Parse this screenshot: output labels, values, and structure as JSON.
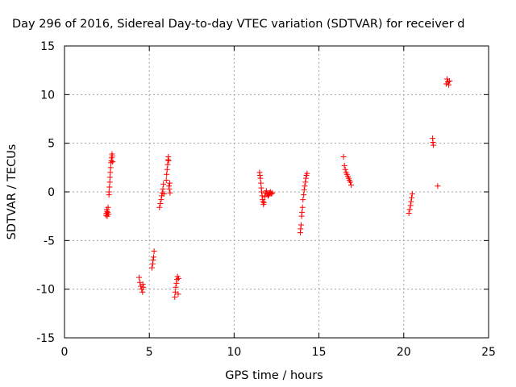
{
  "chart_data": {
    "type": "scatter",
    "title": "Day 296 of 2016, Sidereal Day-to-day VTEC variation (SDTVAR) for receiver d",
    "xlabel": "GPS time / hours",
    "ylabel": "SDTVAR / TECUs",
    "xlim": [
      0,
      25
    ],
    "ylim": [
      -15,
      15
    ],
    "xticks": [
      "0",
      "5",
      "10",
      "15",
      "20",
      "25"
    ],
    "yticks": [
      "-15",
      "-10",
      "-5",
      "0",
      "5",
      "10",
      "15"
    ],
    "grid": true,
    "marker": "plus",
    "color": "#ff0000",
    "points": [
      [
        2.45,
        -2.4
      ],
      [
        2.47,
        -2.2
      ],
      [
        2.5,
        -2.0
      ],
      [
        2.5,
        -1.8
      ],
      [
        2.52,
        -2.5
      ],
      [
        2.55,
        -2.1
      ],
      [
        2.57,
        -1.6
      ],
      [
        2.6,
        -2.3
      ],
      [
        2.62,
        -0.3
      ],
      [
        2.63,
        0.0
      ],
      [
        2.65,
        0.5
      ],
      [
        2.67,
        1.0
      ],
      [
        2.68,
        1.5
      ],
      [
        2.7,
        2.0
      ],
      [
        2.72,
        2.5
      ],
      [
        2.74,
        3.0
      ],
      [
        2.76,
        3.2
      ],
      [
        2.78,
        3.5
      ],
      [
        2.8,
        3.9
      ],
      [
        2.82,
        3.7
      ],
      [
        2.84,
        3.1
      ],
      [
        4.4,
        -8.8
      ],
      [
        4.45,
        -9.3
      ],
      [
        4.5,
        -9.7
      ],
      [
        4.55,
        -10.0
      ],
      [
        4.6,
        -10.3
      ],
      [
        4.62,
        -9.5
      ],
      [
        4.65,
        -9.8
      ],
      [
        5.15,
        -7.8
      ],
      [
        5.2,
        -7.4
      ],
      [
        5.22,
        -7.0
      ],
      [
        5.25,
        -6.7
      ],
      [
        5.28,
        -6.1
      ],
      [
        5.6,
        -1.6
      ],
      [
        5.65,
        -1.2
      ],
      [
        5.7,
        -0.8
      ],
      [
        5.73,
        -0.4
      ],
      [
        5.76,
        -0.1
      ],
      [
        5.8,
        0.3
      ],
      [
        5.83,
        0.8
      ],
      [
        5.86,
        -0.2
      ],
      [
        6.0,
        1.2
      ],
      [
        6.02,
        1.8
      ],
      [
        6.05,
        2.3
      ],
      [
        6.08,
        2.8
      ],
      [
        6.1,
        3.3
      ],
      [
        6.12,
        3.6
      ],
      [
        6.14,
        3.2
      ],
      [
        6.16,
        0.6
      ],
      [
        6.18,
        0.3
      ],
      [
        6.2,
        0.9
      ],
      [
        6.22,
        -0.1
      ],
      [
        6.5,
        -10.8
      ],
      [
        6.53,
        -10.3
      ],
      [
        6.56,
        -9.8
      ],
      [
        6.6,
        -9.4
      ],
      [
        6.63,
        -9.0
      ],
      [
        6.66,
        -8.7
      ],
      [
        6.7,
        -10.5
      ],
      [
        6.72,
        -8.9
      ],
      [
        11.5,
        2.0
      ],
      [
        11.52,
        1.7
      ],
      [
        11.55,
        1.4
      ],
      [
        11.58,
        0.9
      ],
      [
        11.6,
        0.4
      ],
      [
        11.62,
        0.0
      ],
      [
        11.65,
        -0.4
      ],
      [
        11.68,
        -0.8
      ],
      [
        11.7,
        -1.0
      ],
      [
        11.73,
        -1.3
      ],
      [
        11.76,
        -1.1
      ],
      [
        11.8,
        -0.5
      ],
      [
        11.85,
        -0.1
      ],
      [
        11.9,
        0.1
      ],
      [
        11.95,
        -0.2
      ],
      [
        12.0,
        -0.4
      ],
      [
        12.05,
        -0.3
      ],
      [
        12.1,
        -0.1
      ],
      [
        12.15,
        0.0
      ],
      [
        12.2,
        -0.2
      ],
      [
        12.25,
        -0.1
      ],
      [
        13.9,
        -4.2
      ],
      [
        13.92,
        -3.8
      ],
      [
        13.95,
        -3.4
      ],
      [
        13.98,
        -2.5
      ],
      [
        14.0,
        -2.1
      ],
      [
        14.03,
        -1.6
      ],
      [
        14.06,
        -0.8
      ],
      [
        14.1,
        -0.3
      ],
      [
        14.13,
        0.2
      ],
      [
        14.16,
        0.6
      ],
      [
        14.2,
        1.0
      ],
      [
        14.23,
        1.4
      ],
      [
        14.26,
        1.7
      ],
      [
        14.3,
        1.9
      ],
      [
        16.45,
        3.6
      ],
      [
        16.5,
        2.7
      ],
      [
        16.55,
        2.3
      ],
      [
        16.6,
        2.0
      ],
      [
        16.65,
        1.8
      ],
      [
        16.7,
        1.6
      ],
      [
        16.75,
        1.4
      ],
      [
        16.8,
        1.2
      ],
      [
        16.85,
        1.0
      ],
      [
        16.9,
        0.7
      ],
      [
        20.3,
        -2.2
      ],
      [
        20.35,
        -1.8
      ],
      [
        20.4,
        -1.4
      ],
      [
        20.43,
        -1.0
      ],
      [
        20.46,
        -0.6
      ],
      [
        20.5,
        -0.2
      ],
      [
        21.7,
        5.5
      ],
      [
        21.72,
        5.1
      ],
      [
        21.75,
        4.8
      ],
      [
        22.0,
        0.6
      ],
      [
        22.5,
        11.1
      ],
      [
        22.55,
        11.6
      ],
      [
        22.6,
        11.3
      ],
      [
        22.65,
        11.0
      ],
      [
        22.7,
        11.4
      ]
    ]
  }
}
